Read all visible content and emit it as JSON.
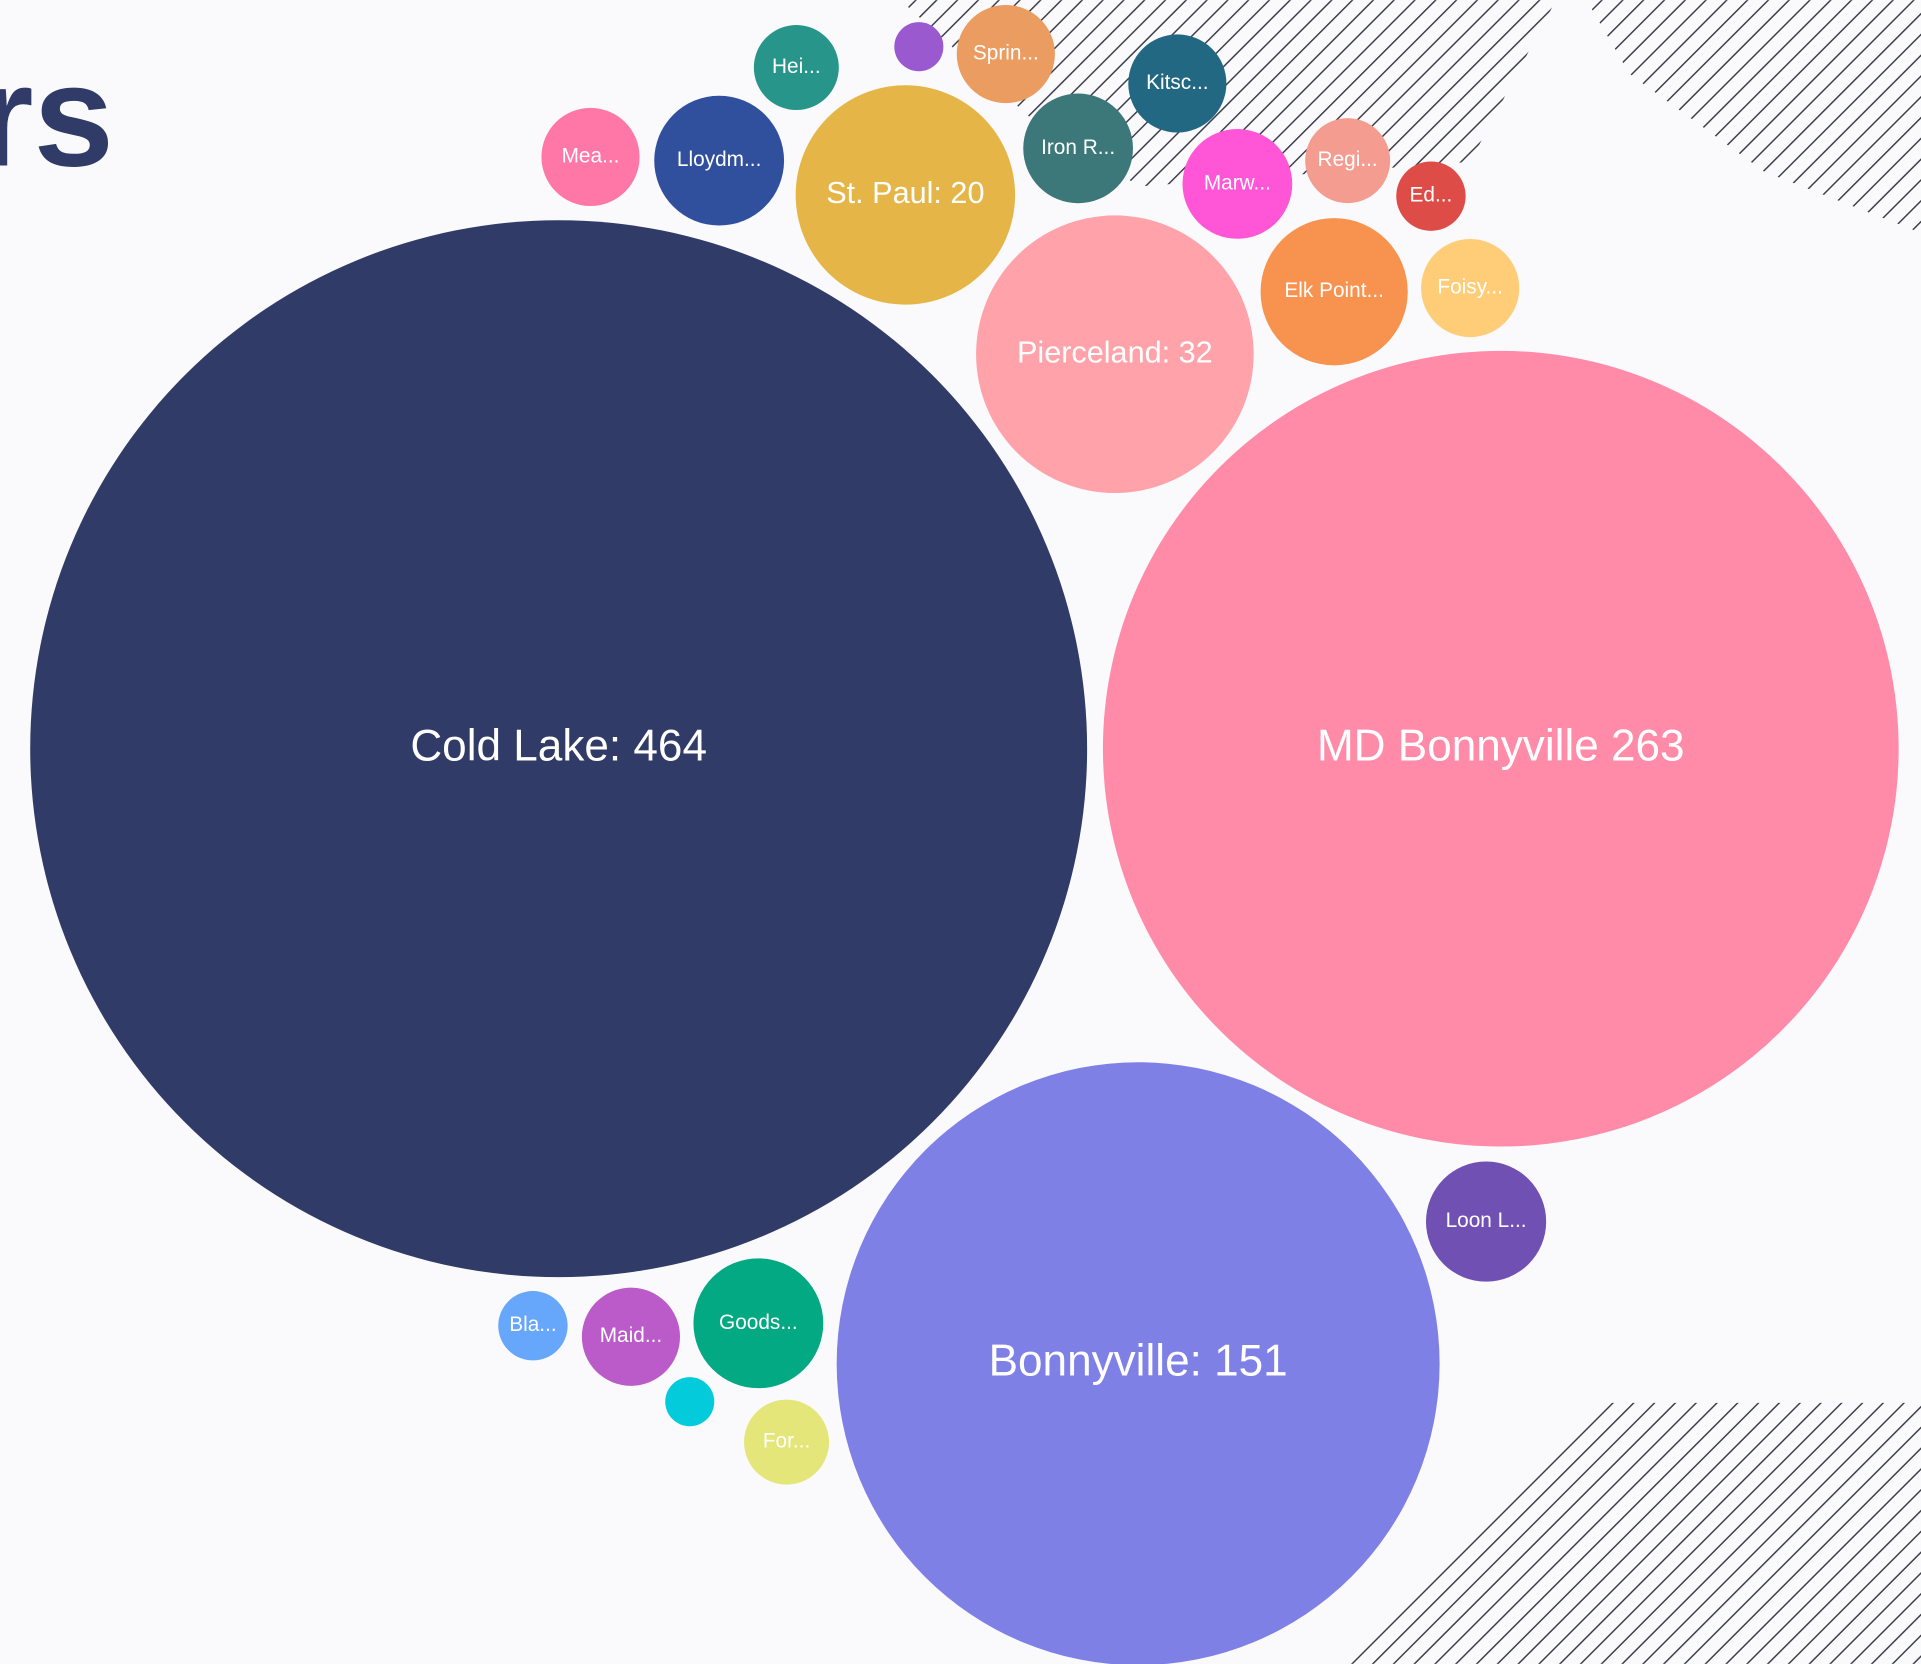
{
  "chart_data": {
    "type": "bubble",
    "title": "rs",
    "categories": [
      "Cold Lake: 464",
      "MD Bonnyville 263",
      "Bonnyville: 151",
      "Pierceland: 32",
      "St. Paul: 20",
      "Mea...",
      "Lloydm...",
      "Hei...",
      null,
      "Sprin...",
      "Kitsc...",
      "Iron R...",
      "Marw...",
      "Regi...",
      "Ed...",
      "Elk Point...",
      "Foisy...",
      "Loon L...",
      "Bla...",
      "Maid...",
      "Goods...",
      null,
      "For..."
    ],
    "values": [
      464,
      263,
      151,
      32,
      20,
      4,
      7,
      3,
      1,
      4,
      4,
      5,
      5,
      3,
      2,
      9,
      4,
      6,
      2,
      4,
      7,
      1,
      3
    ],
    "colors": [
      "#303b68",
      "#ff8ba8",
      "#7f80e6",
      "#ffa2aa",
      "#e6b547",
      "#ff77a6",
      "#30509e",
      "#27958a",
      "#9a59cf",
      "#eb9c61",
      "#236882",
      "#3c7779",
      "#ff55d6",
      "#f59c90",
      "#de4c48",
      "#f7924f",
      "#ffcd78",
      "#7050b3",
      "#66a6fb",
      "#bb5ac9",
      "#02a982",
      "#03cbdc",
      "#e5e67a"
    ]
  }
}
